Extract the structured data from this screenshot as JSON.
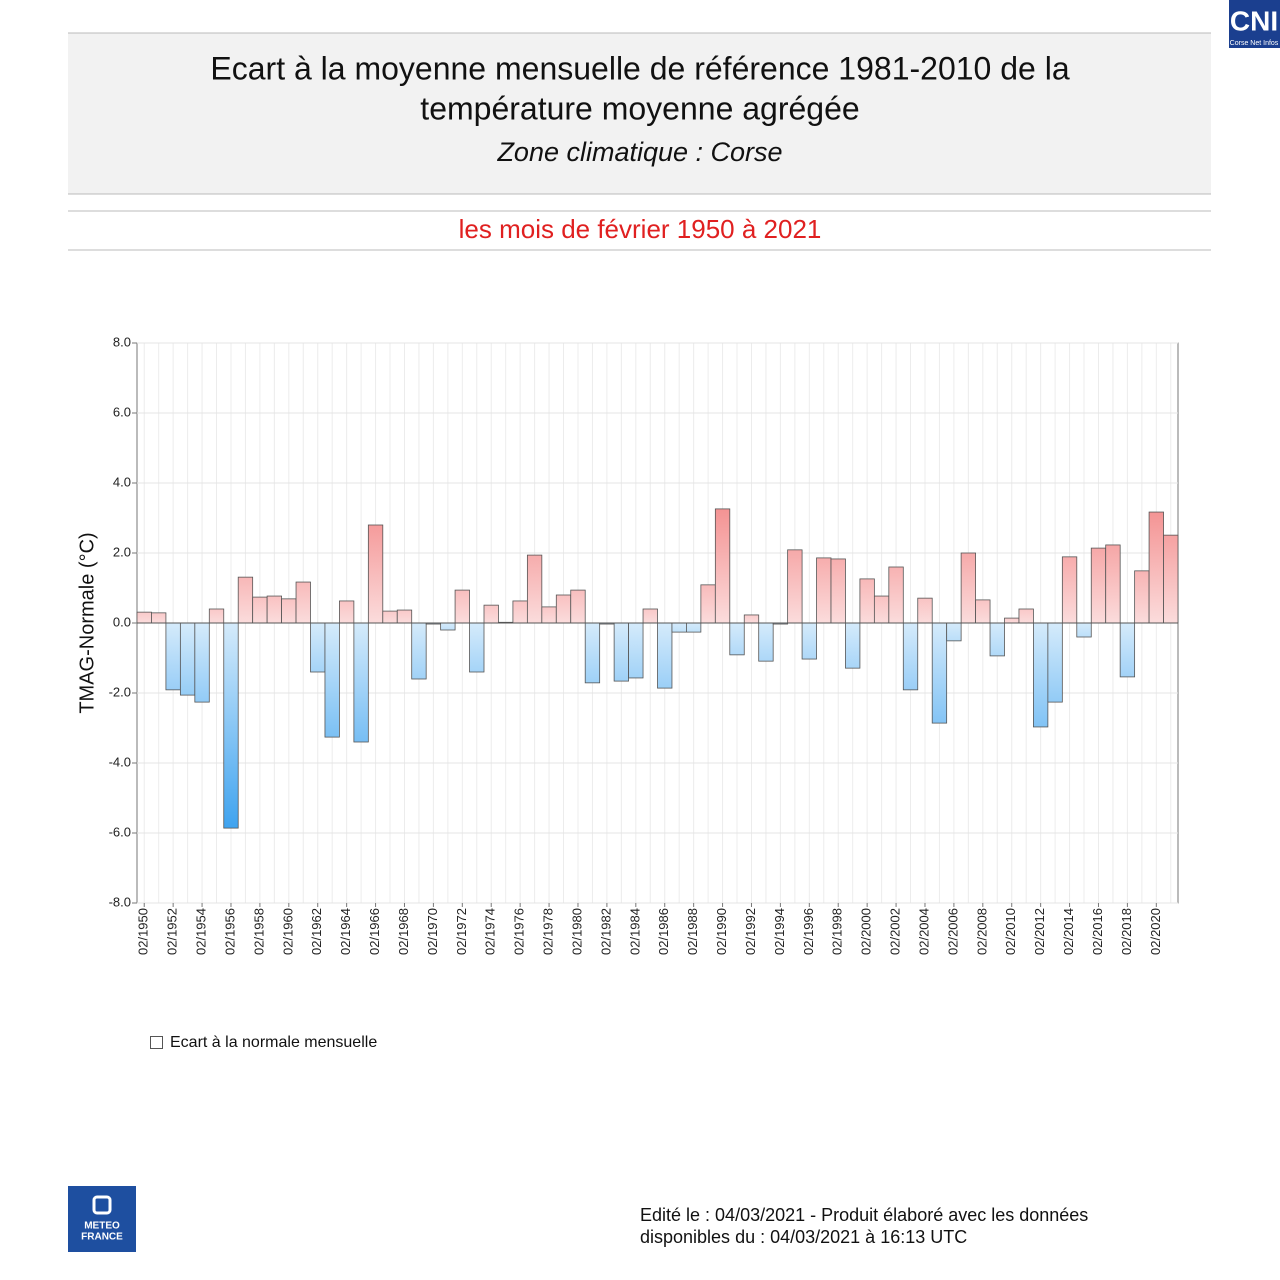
{
  "header": {
    "title_lines": [
      "Ecart à la moyenne mensuelle de référence 1981-2010 de la",
      "température moyenne  agrégée"
    ],
    "subtitle": "Zone climatique : Corse",
    "period": "les mois de février 1950 à 2021"
  },
  "chart_data": {
    "type": "bar",
    "y_label": "TMAG-Normale (°C)",
    "legend": "Ecart à la normale mensuelle",
    "positive_color": "#ef6262",
    "negative_color": "#3fa3ef",
    "grid": true,
    "categories": [
      "02/1950",
      null,
      "02/1952",
      null,
      "02/1954",
      null,
      "02/1956",
      null,
      "02/1958",
      null,
      "02/1960",
      null,
      "02/1962",
      null,
      "02/1964",
      null,
      "02/1966",
      null,
      "02/1968",
      null,
      "02/1970",
      null,
      "02/1972",
      null,
      "02/1974",
      null,
      "02/1976",
      null,
      "02/1978",
      null,
      "02/1980",
      null,
      "02/1982",
      null,
      "02/1984",
      null,
      "02/1986",
      null,
      "02/1988",
      null,
      "02/1990",
      null,
      "02/1992",
      null,
      "02/1994",
      null,
      "02/1996",
      null,
      "02/1998",
      null,
      "02/2000",
      null,
      "02/2002",
      null,
      "02/2004",
      null,
      "02/2006",
      null,
      "02/2008",
      null,
      "02/2010",
      null,
      "02/2012",
      null,
      "02/2014",
      null,
      "02/2016",
      null,
      "02/2018",
      null,
      "02/2020",
      null
    ],
    "values": [
      0.31,
      0.29,
      -1.91,
      -2.06,
      -2.26,
      0.4,
      -5.86,
      1.31,
      0.74,
      0.77,
      0.69,
      1.17,
      -1.4,
      -3.26,
      0.63,
      -3.4,
      2.8,
      0.34,
      0.37,
      -1.6,
      -0.03,
      -0.2,
      0.94,
      -1.4,
      0.51,
      0.02,
      0.63,
      1.94,
      0.46,
      0.8,
      0.94,
      -1.71,
      -0.03,
      -1.66,
      -1.57,
      0.4,
      -1.86,
      -0.26,
      -0.26,
      1.09,
      3.26,
      -0.91,
      0.23,
      -1.09,
      -0.03,
      2.09,
      -1.03,
      1.86,
      1.83,
      -1.29,
      1.26,
      0.77,
      1.6,
      -1.91,
      0.71,
      -2.86,
      -0.51,
      2.0,
      0.66,
      -0.94,
      0.14,
      0.4,
      -2.97,
      -2.26,
      1.89,
      -0.4,
      2.14,
      2.23,
      -1.54,
      1.49,
      3.17,
      2.51
    ],
    "ylim": [
      -8,
      8
    ],
    "yticks": [
      {
        "value": -8,
        "label": "-8.0"
      },
      {
        "value": -6,
        "label": "-6.0"
      },
      {
        "value": -4,
        "label": "-4.0"
      },
      {
        "value": -2,
        "label": "-2.0"
      },
      {
        "value": 0,
        "label": "0.0"
      },
      {
        "value": 2,
        "label": "2.0"
      },
      {
        "value": 4,
        "label": "4.0"
      },
      {
        "value": 6,
        "label": "6.0"
      },
      {
        "value": 8,
        "label": "8.0"
      }
    ]
  },
  "footer": {
    "lines": [
      "Edité le : 04/03/2021 - Produit élaboré avec les données",
      "disponibles du : 04/03/2021 à 16:13 UTC"
    ]
  },
  "logo": {
    "lines": [
      "METEO",
      "FRANCE"
    ]
  },
  "badge": {
    "text": "CNI",
    "caption": "Corse Net Infos"
  }
}
